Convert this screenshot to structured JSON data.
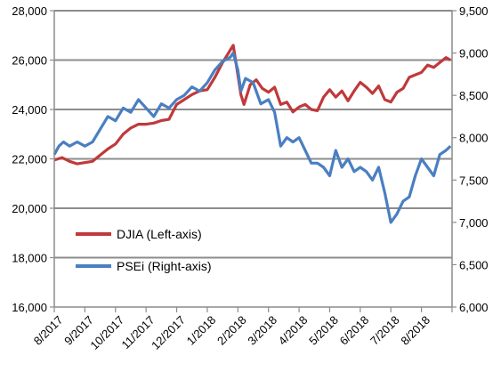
{
  "chart_data": {
    "type": "line",
    "x_labels": [
      "8/2017",
      "9/2017",
      "10/2017",
      "11/2017",
      "12/2017",
      "1/2018",
      "2/2018",
      "3/2018",
      "4/2018",
      "5/2018",
      "6/2018",
      "7/2018",
      "8/2018"
    ],
    "y_left": {
      "ticks": [
        "16,000",
        "18,000",
        "20,000",
        "22,000",
        "24,000",
        "26,000",
        "28,000"
      ],
      "range": [
        16000,
        28000
      ]
    },
    "y_right": {
      "ticks": [
        "6,000",
        "6,500",
        "7,000",
        "7,500",
        "8,000",
        "8,500",
        "9,000",
        "9,500"
      ],
      "range": [
        6000,
        9500
      ]
    },
    "grid": true,
    "legend_position": "left-middle",
    "series": [
      {
        "name": "DJIA (Left-axis)",
        "axis": "left",
        "color": "#c0393b",
        "points": [
          [
            0.0,
            21950
          ],
          [
            0.25,
            22050
          ],
          [
            0.5,
            21900
          ],
          [
            0.75,
            21800
          ],
          [
            1.0,
            21850
          ],
          [
            1.25,
            21900
          ],
          [
            1.5,
            22150
          ],
          [
            1.75,
            22400
          ],
          [
            2.0,
            22600
          ],
          [
            2.25,
            23000
          ],
          [
            2.5,
            23250
          ],
          [
            2.75,
            23400
          ],
          [
            3.0,
            23400
          ],
          [
            3.25,
            23450
          ],
          [
            3.5,
            23550
          ],
          [
            3.75,
            23600
          ],
          [
            4.0,
            24200
          ],
          [
            4.25,
            24400
          ],
          [
            4.5,
            24600
          ],
          [
            4.75,
            24750
          ],
          [
            5.0,
            24800
          ],
          [
            5.25,
            25300
          ],
          [
            5.5,
            25900
          ],
          [
            5.75,
            26400
          ],
          [
            5.85,
            26600
          ],
          [
            6.0,
            25400
          ],
          [
            6.1,
            24600
          ],
          [
            6.2,
            24200
          ],
          [
            6.4,
            25000
          ],
          [
            6.6,
            25200
          ],
          [
            6.8,
            24850
          ],
          [
            7.0,
            24700
          ],
          [
            7.2,
            24900
          ],
          [
            7.4,
            24200
          ],
          [
            7.6,
            24300
          ],
          [
            7.8,
            23900
          ],
          [
            8.0,
            24100
          ],
          [
            8.2,
            24200
          ],
          [
            8.4,
            24000
          ],
          [
            8.6,
            23950
          ],
          [
            8.8,
            24500
          ],
          [
            9.0,
            24800
          ],
          [
            9.2,
            24500
          ],
          [
            9.4,
            24750
          ],
          [
            9.6,
            24350
          ],
          [
            9.8,
            24750
          ],
          [
            10.0,
            25100
          ],
          [
            10.2,
            24900
          ],
          [
            10.4,
            24650
          ],
          [
            10.6,
            24950
          ],
          [
            10.8,
            24400
          ],
          [
            11.0,
            24300
          ],
          [
            11.2,
            24700
          ],
          [
            11.4,
            24850
          ],
          [
            11.6,
            25300
          ],
          [
            11.8,
            25400
          ],
          [
            12.0,
            25500
          ],
          [
            12.2,
            25800
          ],
          [
            12.4,
            25700
          ],
          [
            12.6,
            25900
          ],
          [
            12.8,
            26100
          ],
          [
            12.95,
            26000
          ]
        ]
      },
      {
        "name": "PSEi (Right-axis)",
        "axis": "right",
        "color": "#4a7fc1",
        "points": [
          [
            0.0,
            7800
          ],
          [
            0.15,
            7900
          ],
          [
            0.3,
            7950
          ],
          [
            0.5,
            7900
          ],
          [
            0.75,
            7950
          ],
          [
            1.0,
            7900
          ],
          [
            1.25,
            7950
          ],
          [
            1.5,
            8100
          ],
          [
            1.75,
            8250
          ],
          [
            2.0,
            8200
          ],
          [
            2.25,
            8350
          ],
          [
            2.5,
            8300
          ],
          [
            2.75,
            8450
          ],
          [
            3.0,
            8350
          ],
          [
            3.25,
            8250
          ],
          [
            3.5,
            8400
          ],
          [
            3.75,
            8350
          ],
          [
            4.0,
            8450
          ],
          [
            4.25,
            8500
          ],
          [
            4.5,
            8600
          ],
          [
            4.75,
            8550
          ],
          [
            5.0,
            8650
          ],
          [
            5.25,
            8800
          ],
          [
            5.5,
            8900
          ],
          [
            5.75,
            8950
          ],
          [
            5.85,
            9000
          ],
          [
            6.0,
            8800
          ],
          [
            6.1,
            8550
          ],
          [
            6.25,
            8700
          ],
          [
            6.5,
            8650
          ],
          [
            6.75,
            8400
          ],
          [
            7.0,
            8450
          ],
          [
            7.2,
            8300
          ],
          [
            7.4,
            7900
          ],
          [
            7.6,
            8000
          ],
          [
            7.8,
            7950
          ],
          [
            8.0,
            8000
          ],
          [
            8.2,
            7850
          ],
          [
            8.4,
            7700
          ],
          [
            8.6,
            7700
          ],
          [
            8.8,
            7650
          ],
          [
            9.0,
            7550
          ],
          [
            9.2,
            7850
          ],
          [
            9.4,
            7650
          ],
          [
            9.6,
            7750
          ],
          [
            9.8,
            7600
          ],
          [
            10.0,
            7650
          ],
          [
            10.2,
            7600
          ],
          [
            10.4,
            7500
          ],
          [
            10.6,
            7650
          ],
          [
            10.8,
            7350
          ],
          [
            11.0,
            7000
          ],
          [
            11.2,
            7100
          ],
          [
            11.4,
            7250
          ],
          [
            11.6,
            7300
          ],
          [
            11.8,
            7550
          ],
          [
            12.0,
            7750
          ],
          [
            12.2,
            7650
          ],
          [
            12.4,
            7550
          ],
          [
            12.6,
            7800
          ],
          [
            12.8,
            7850
          ],
          [
            12.95,
            7900
          ]
        ]
      }
    ]
  }
}
